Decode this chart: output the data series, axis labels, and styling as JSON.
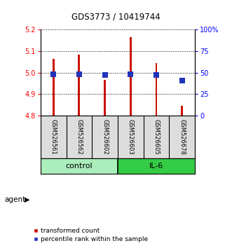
{
  "title": "GDS3773 / 10419744",
  "samples": [
    "GSM526561",
    "GSM526562",
    "GSM526602",
    "GSM526603",
    "GSM526605",
    "GSM526678"
  ],
  "groups": [
    "control",
    "control",
    "control",
    "IL-6",
    "IL-6",
    "IL-6"
  ],
  "bar_bottom": 4.8,
  "bar_tops": [
    5.065,
    5.085,
    4.965,
    5.165,
    5.045,
    4.845
  ],
  "percentile_values": [
    0.477,
    0.477,
    0.47,
    0.483,
    0.475,
    0.405
  ],
  "ylim_left": [
    4.8,
    5.2
  ],
  "ylim_right": [
    0,
    1.0
  ],
  "yticks_left": [
    4.8,
    4.9,
    5.0,
    5.1,
    5.2
  ],
  "yticks_right": [
    0,
    0.25,
    0.5,
    0.75,
    1.0
  ],
  "ytick_labels_right": [
    "0",
    "25",
    "50",
    "75",
    "100%"
  ],
  "bar_color": "#cc1100",
  "blue_color": "#2233bb",
  "control_color": "#aaeebb",
  "il6_color": "#33cc44",
  "sample_bg_color": "#dddddd",
  "bar_width": 0.08,
  "blue_marker_size": 40,
  "legend_items": [
    "transformed count",
    "percentile rank within the sample"
  ]
}
